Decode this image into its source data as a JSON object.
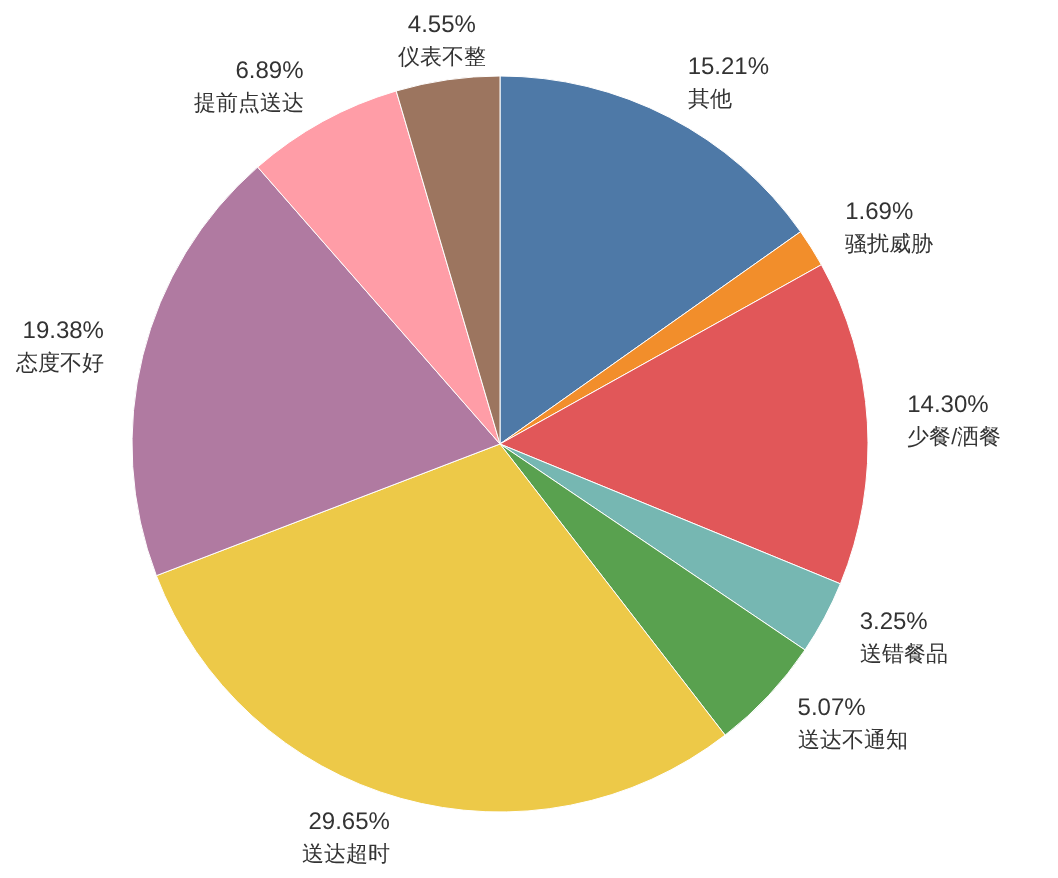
{
  "chart_data": {
    "type": "pie",
    "categories": [
      "其他",
      "骚扰威胁",
      "少餐/洒餐",
      "送错餐品",
      "送达不通知",
      "送达超时",
      "态度不好",
      "提前点送达",
      "仪表不整"
    ],
    "values": [
      15.21,
      1.69,
      14.3,
      3.25,
      5.07,
      29.65,
      19.38,
      6.89,
      4.55
    ],
    "value_labels": [
      "15.21%",
      "1.69%",
      "14.30%",
      "3.25%",
      "5.07%",
      "29.65%",
      "19.38%",
      "6.89%",
      "4.55%"
    ],
    "colors": [
      "#4e79a7",
      "#f28e2b",
      "#e15759",
      "#76b7b2",
      "#59a14f",
      "#edc948",
      "#b07aa1",
      "#ff9da7",
      "#9c755f"
    ]
  }
}
